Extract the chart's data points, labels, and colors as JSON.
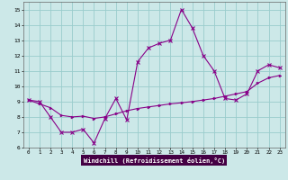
{
  "title": "",
  "xlabel": "Windchill (Refroidissement éolien,°C)",
  "bg_color": "#cce8e8",
  "plot_bg_color": "#cce8e8",
  "line_color": "#880088",
  "grid_color": "#99cccc",
  "xlabel_bg": "#440044",
  "xlabel_color": "#ffffff",
  "xlim": [
    -0.5,
    23.5
  ],
  "ylim": [
    6.0,
    15.5
  ],
  "xticks": [
    0,
    1,
    2,
    3,
    4,
    5,
    6,
    7,
    8,
    9,
    10,
    11,
    12,
    13,
    14,
    15,
    16,
    17,
    18,
    19,
    20,
    21,
    22,
    23
  ],
  "yticks": [
    6,
    7,
    8,
    9,
    10,
    11,
    12,
    13,
    14,
    15
  ],
  "zigzag_x": [
    0,
    1,
    2,
    3,
    4,
    5,
    6,
    7,
    8,
    9,
    10,
    11,
    12,
    13,
    14,
    15,
    16,
    17,
    18,
    19,
    20,
    21,
    22,
    23
  ],
  "zigzag_y": [
    9.1,
    9.0,
    8.0,
    7.0,
    7.0,
    7.2,
    6.3,
    7.9,
    9.2,
    7.8,
    11.6,
    12.5,
    12.8,
    13.0,
    15.0,
    13.8,
    12.0,
    11.0,
    9.2,
    9.1,
    9.5,
    11.0,
    11.4,
    11.2
  ],
  "trend_x": [
    0,
    1,
    2,
    3,
    4,
    5,
    6,
    7,
    8,
    9,
    10,
    11,
    12,
    13,
    14,
    15,
    16,
    17,
    18,
    19,
    20,
    21,
    22,
    23
  ],
  "trend_y": [
    9.1,
    8.85,
    8.6,
    8.1,
    8.0,
    8.05,
    7.9,
    8.0,
    8.2,
    8.4,
    8.55,
    8.65,
    8.75,
    8.85,
    8.92,
    9.0,
    9.1,
    9.2,
    9.35,
    9.5,
    9.65,
    10.2,
    10.55,
    10.7
  ]
}
